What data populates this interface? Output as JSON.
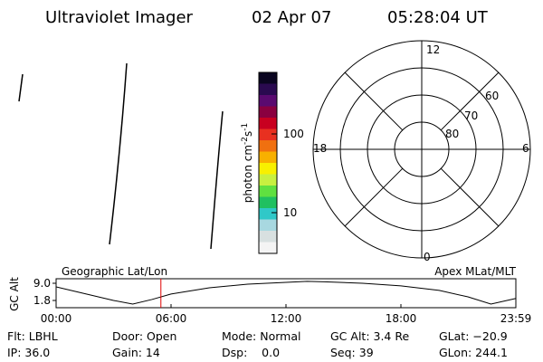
{
  "header": {
    "title": "Ultraviolet Imager",
    "date": "02 Apr 07",
    "time": "05:28:04 UT"
  },
  "colorbar": {
    "label": "photon cm",
    "exp1": "-2",
    "unit2": "s",
    "exp2": "-1",
    "ticks": [
      "100",
      "10"
    ]
  },
  "polar": {
    "clock": {
      "top": "12",
      "right": "6",
      "bottom": "0",
      "left": "18"
    },
    "rings": [
      "60",
      "70",
      "80"
    ]
  },
  "altitude": {
    "ylabel": "GC Alt",
    "yticks": [
      "9.0",
      "1.8"
    ],
    "left_label": "Geographic Lat/Lon",
    "right_label": "Apex MLat/MLT",
    "xticks": [
      "00:00",
      "06:00",
      "12:00",
      "18:00",
      "23:59"
    ],
    "x": [
      0,
      1,
      2,
      3,
      4,
      5,
      6,
      8,
      10,
      12,
      13.1,
      14,
      16,
      18,
      20,
      21.5,
      22.7,
      23.98
    ],
    "values": [
      7.5,
      5.6,
      3.7,
      1.8,
      0.3,
      2.2,
      4.5,
      7.1,
      8.6,
      9.4,
      9.8,
      9.6,
      9.0,
      7.9,
      6.0,
      3.3,
      0.3,
      2.6
    ],
    "marker_x": 5.47
  },
  "info": [
    [
      "Flt: LBHL",
      "Door: Open",
      "Mode: Normal",
      "GC Alt: 3.4 Re",
      "GLat: −20.9"
    ],
    [
      "IP: 36.0",
      "Gain: 14",
      "Dsp:    0.0",
      "Seq: 39",
      "GLon: 244.1"
    ]
  ]
}
